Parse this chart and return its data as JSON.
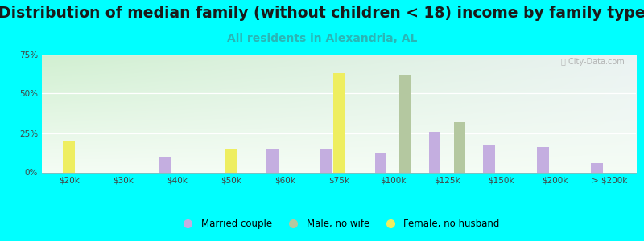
{
  "title": "Distribution of median family (without children < 18) income by family type",
  "subtitle": "All residents in Alexandria, AL",
  "categories": [
    "$20k",
    "$30k",
    "$40k",
    "$50k",
    "$60k",
    "$75k",
    "$100k",
    "$125k",
    "$150k",
    "$200k",
    "> $200k"
  ],
  "married_couple": [
    0,
    0,
    10,
    0,
    15,
    15,
    12,
    26,
    17,
    16,
    6
  ],
  "male_no_wife": [
    0,
    0,
    0,
    0,
    0,
    0,
    62,
    32,
    0,
    0,
    0
  ],
  "female_no_husband": [
    20,
    0,
    0,
    15,
    0,
    63,
    0,
    0,
    0,
    0,
    0
  ],
  "married_color": "#c4aee0",
  "male_color": "#b4c8a0",
  "female_color": "#eeee60",
  "ylim": [
    0,
    75
  ],
  "yticks": [
    0,
    25,
    50,
    75
  ],
  "ytick_labels": [
    "0%",
    "25%",
    "50%",
    "75%"
  ],
  "fig_bg_color": "#00ffff",
  "title_fontsize": 13.5,
  "subtitle_fontsize": 10,
  "subtitle_color": "#2ab5b5",
  "watermark": "City-Data.com",
  "bar_width": 0.22,
  "bar_gap": 0.01
}
